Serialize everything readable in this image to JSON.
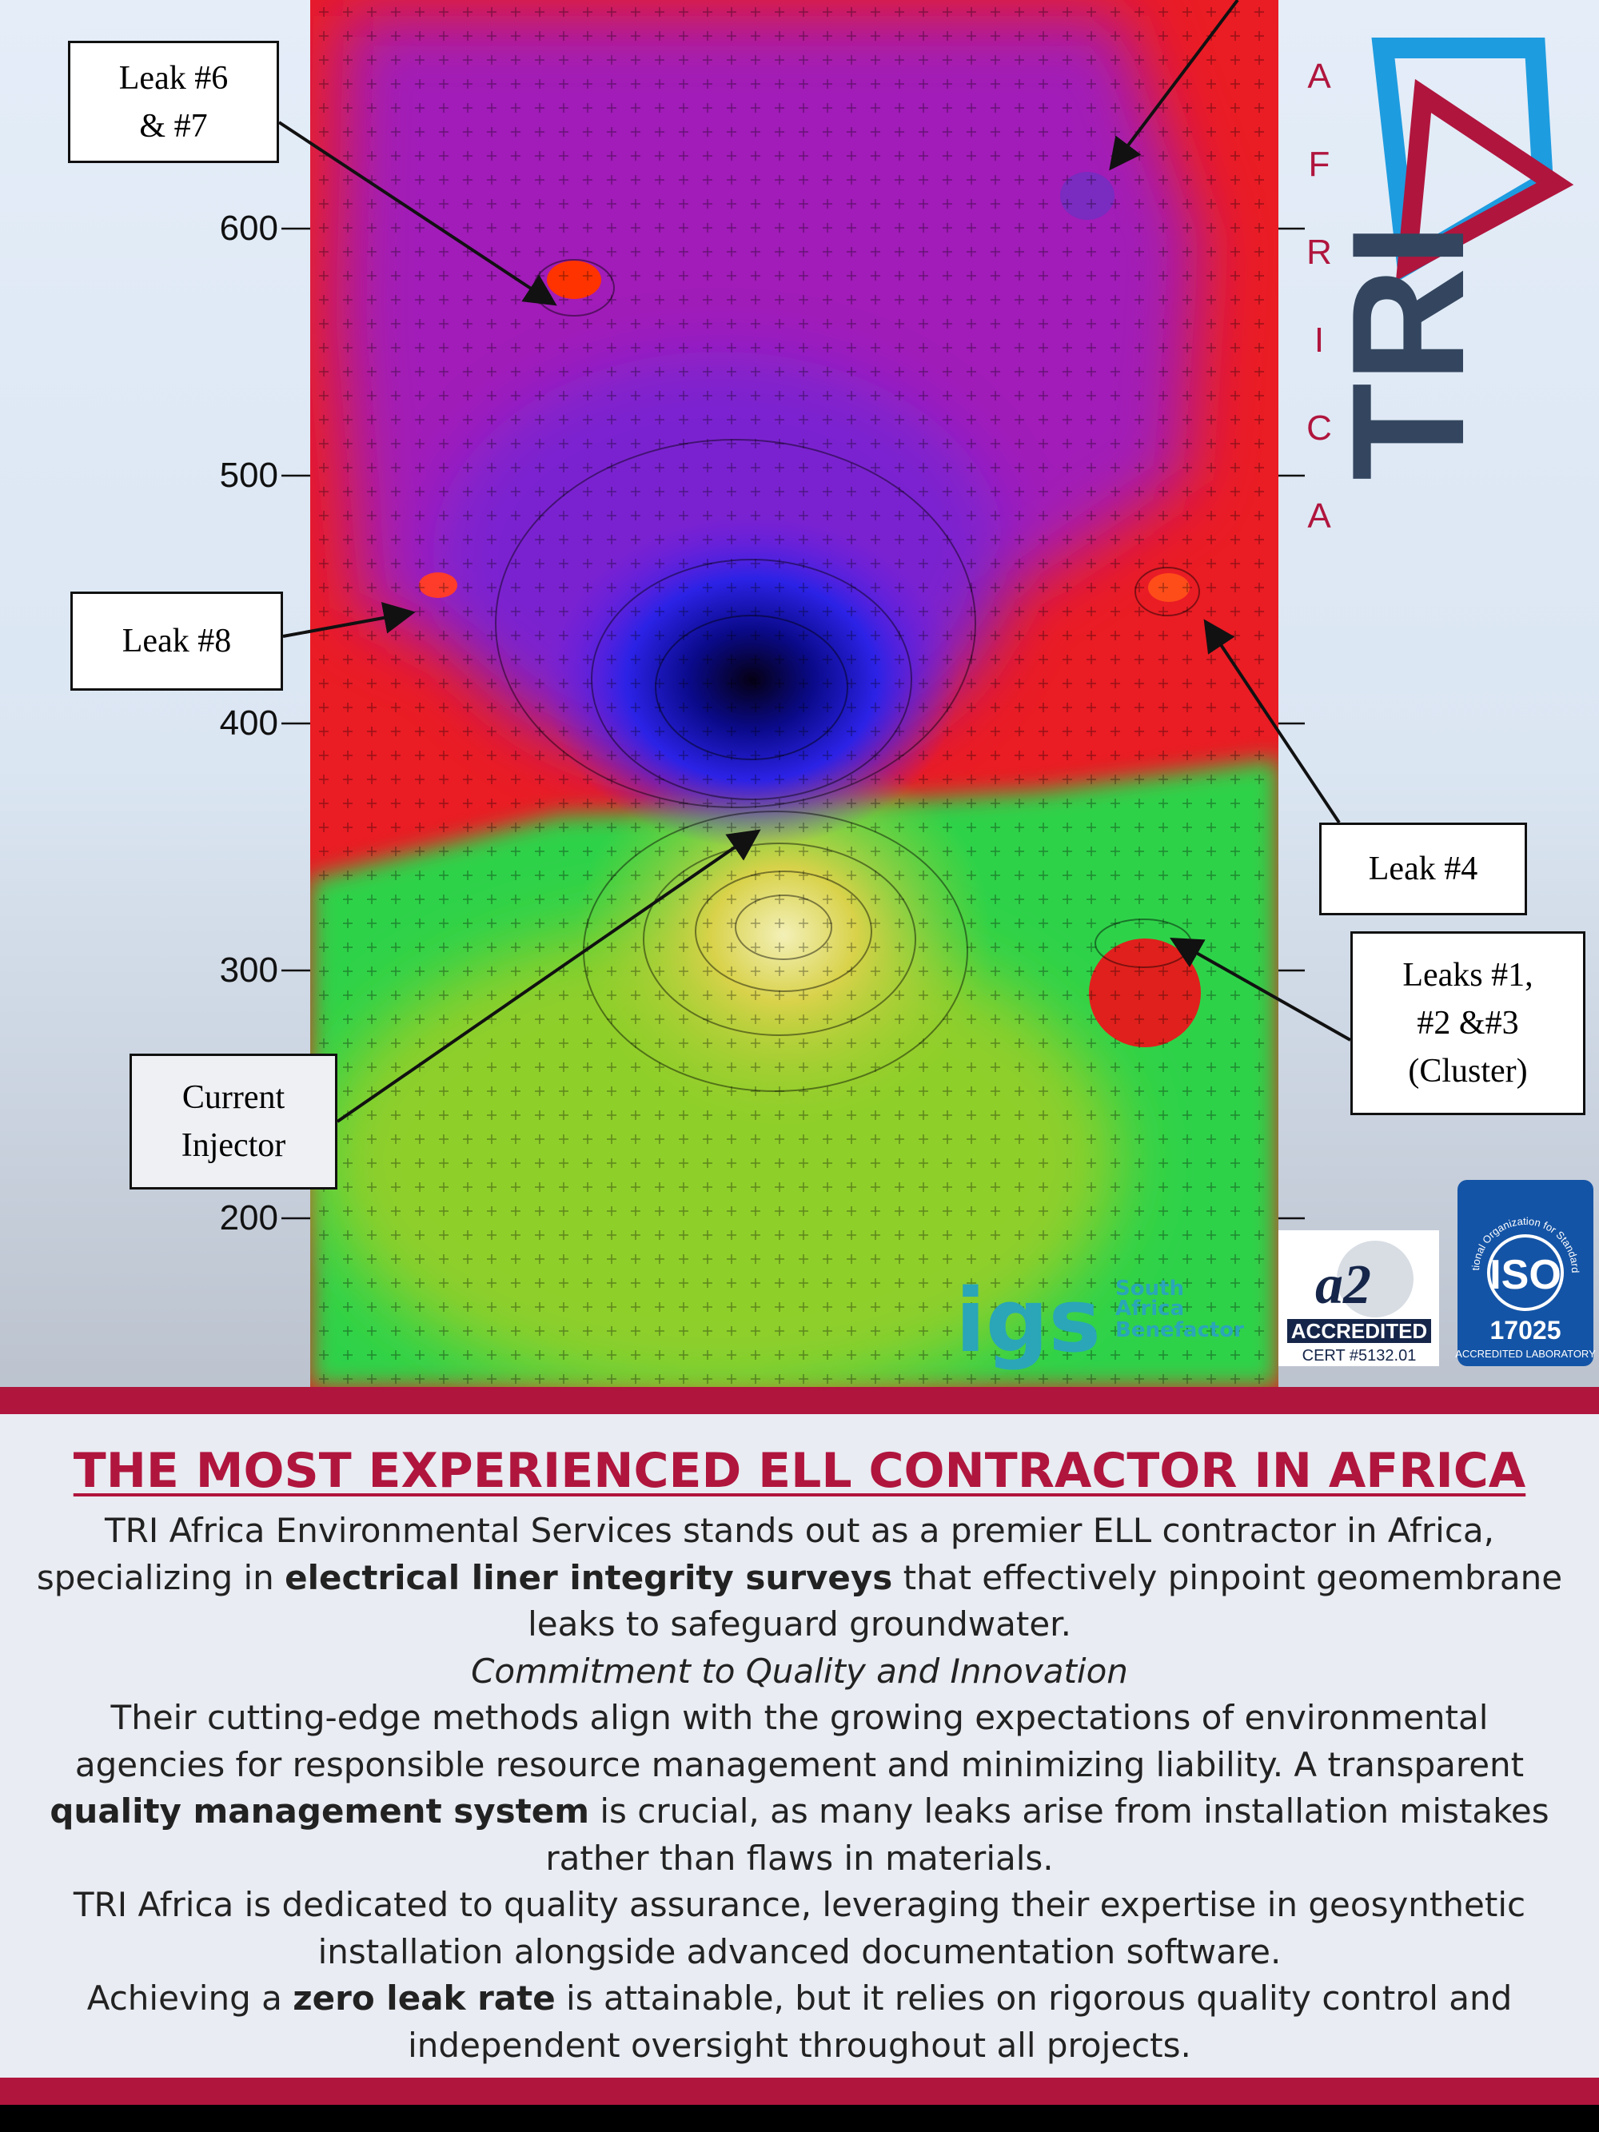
{
  "map": {
    "y_labels": [
      "600",
      "500",
      "400",
      "300",
      "200"
    ],
    "callouts": [
      {
        "lines": [
          "Leak #6",
          "& #7"
        ]
      },
      {
        "lines": [
          "Leak #8"
        ]
      },
      {
        "lines": [
          "Current",
          "Injector"
        ]
      },
      {
        "lines": [
          "Leak #4"
        ]
      },
      {
        "lines": [
          "Leaks #1,",
          "#2 &#3",
          "(Cluster)"
        ]
      }
    ]
  },
  "logo": {
    "letters": [
      "A",
      "F",
      "R",
      "I",
      "C",
      "A"
    ],
    "wordmark": "TRI"
  },
  "badges": {
    "igs": "igs",
    "igs_sub": [
      "South",
      "Africa",
      "Benefactor"
    ],
    "a2la": "ACCREDITED",
    "a2la_cert": "CERT #5132.01",
    "iso_ring": "International Organization for Standardization",
    "iso": "ISO",
    "iso_number": "17025",
    "iso_sub": "ACCREDITED LABORATORY"
  },
  "article": {
    "heading": "THE MOST EXPERIENCED ELL CONTRACTOR IN AFRICA",
    "paragraphs": [
      [
        {
          "text": "TRI Africa Environmental Services stands out as a premier ELL contractor in Africa, specializing in ",
          "style": "normal"
        },
        {
          "text": "electrical liner integrity surveys",
          "style": "bold"
        },
        {
          "text": " that effectively pinpoint geomembrane leaks to safeguard groundwater.",
          "style": "normal"
        }
      ],
      [
        {
          "text": "Commitment to Quality and Innovation",
          "style": "italic"
        }
      ],
      [
        {
          "text": "Their cutting-edge methods align with the growing expectations of environmental agencies for responsible resource management and minimizing liability. A transparent ",
          "style": "normal"
        },
        {
          "text": "quality management system",
          "style": "bold"
        },
        {
          "text": " is crucial, as many leaks arise from installation mistakes rather than flaws in materials.",
          "style": "normal"
        }
      ],
      [
        {
          "text": "TRI Africa is dedicated to quality assurance, leveraging their expertise in geosynthetic installation alongside advanced documentation software.",
          "style": "normal"
        }
      ],
      [
        {
          "text": "Achieving a ",
          "style": "normal"
        },
        {
          "text": "zero leak rate",
          "style": "bold"
        },
        {
          "text": " is attainable, but it relies on rigorous quality control and independent oversight throughout all projects.",
          "style": "normal"
        }
      ]
    ]
  }
}
